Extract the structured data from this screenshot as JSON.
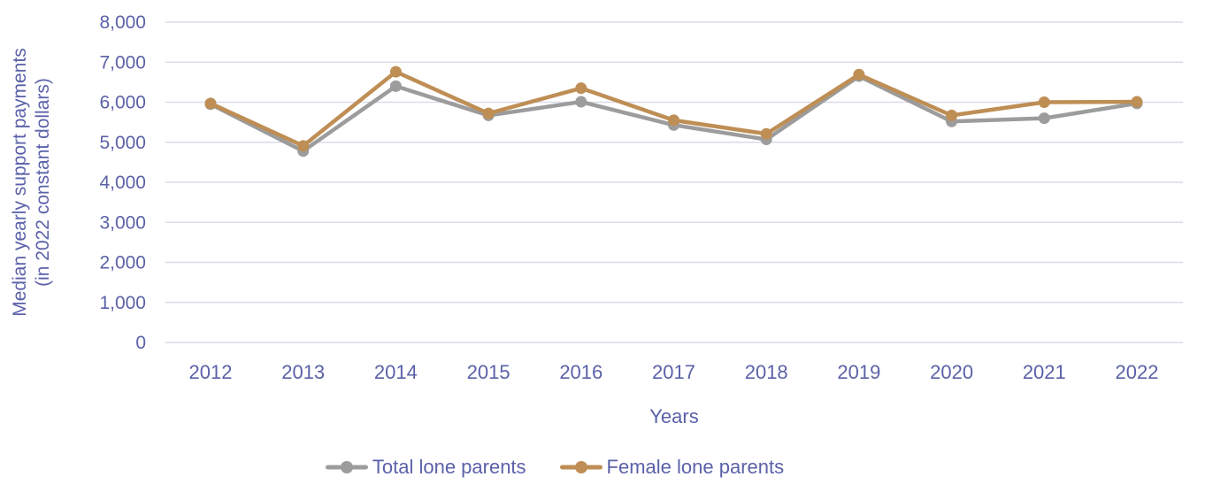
{
  "page": {
    "background": "#ffffff"
  },
  "chart_data": {
    "type": "line",
    "title": "",
    "xlabel": "Years",
    "ylabel": "Median yearly support payments (in 2022 constant dollars)",
    "ylabel_lines": [
      "Median yearly support payments",
      "(in 2022 constant dollars)"
    ],
    "x": [
      2012,
      2013,
      2014,
      2015,
      2016,
      2017,
      2018,
      2019,
      2020,
      2021,
      2022
    ],
    "series": [
      {
        "name": "Total lone parents",
        "color": "#9C9C9C",
        "values": [
          5950,
          4780,
          6400,
          5670,
          6010,
          5430,
          5070,
          6650,
          5520,
          5600,
          5970
        ]
      },
      {
        "name": "Female lone parents",
        "color": "#BE8E55",
        "values": [
          5970,
          4910,
          6760,
          5720,
          6350,
          5550,
          5210,
          6690,
          5670,
          6000,
          6010
        ]
      }
    ],
    "ylim": [
      0,
      8000
    ],
    "ytick_step": 1000,
    "ytick_labels": [
      "0",
      "1,000",
      "2,000",
      "3,000",
      "4,000",
      "5,000",
      "6,000",
      "7,000",
      "8,000"
    ],
    "grid": true,
    "legend_position": "bottom",
    "style": {
      "axis_text_color": "#5B61A8",
      "gridline_color": "#DADBEC",
      "line_width": 4.5,
      "marker_radius": 6.5
    }
  }
}
